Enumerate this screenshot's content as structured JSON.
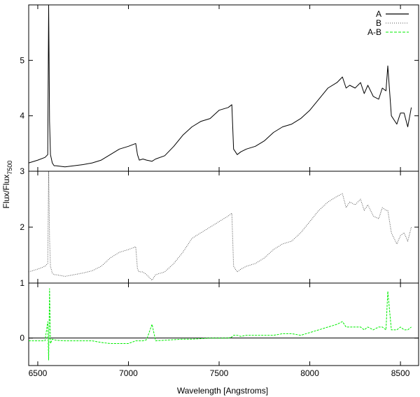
{
  "chart_data": {
    "type": "line",
    "xlabel": "Wavelength [Angstroms]",
    "ylabel": {
      "main": "Flux/Flux",
      "subscript": "7500"
    },
    "xlim": [
      6450,
      8600
    ],
    "x_ticks": [
      6500,
      7000,
      7500,
      8000,
      8500
    ],
    "x_tick_labels": [
      "6500",
      "7000",
      "7500",
      "8000",
      "8500"
    ],
    "grid": false,
    "legend_position": "top-right",
    "colors": {
      "A": "#000000",
      "B": "#555555",
      "A-B": "#00ee00",
      "axis": "#000000"
    },
    "legend": [
      {
        "label": "A",
        "style": "solid"
      },
      {
        "label": "B",
        "style": "dotted"
      },
      {
        "label": "A-B",
        "style": "dashed"
      }
    ],
    "panels": [
      {
        "name": "top",
        "series": "A",
        "ylim": [
          3.0,
          6.0
        ],
        "y_ticks": [
          3,
          4,
          5
        ],
        "y_tick_labels": [
          "3",
          "4",
          "5"
        ],
        "x": [
          6450,
          6500,
          6540,
          6555,
          6560,
          6565,
          6570,
          6580,
          6590,
          6600,
          6650,
          6700,
          6750,
          6800,
          6850,
          6900,
          6950,
          7000,
          7040,
          7050,
          7060,
          7080,
          7100,
          7130,
          7150,
          7200,
          7250,
          7300,
          7350,
          7400,
          7450,
          7500,
          7550,
          7570,
          7580,
          7600,
          7620,
          7650,
          7700,
          7750,
          7800,
          7850,
          7900,
          7950,
          8000,
          8050,
          8100,
          8150,
          8180,
          8200,
          8220,
          8250,
          8280,
          8300,
          8320,
          8350,
          8380,
          8400,
          8420,
          8430,
          8450,
          8480,
          8500,
          8520,
          8540,
          8560
        ],
        "y": [
          3.15,
          3.2,
          3.25,
          3.3,
          6.0,
          3.9,
          3.3,
          3.15,
          3.1,
          3.1,
          3.08,
          3.1,
          3.12,
          3.15,
          3.2,
          3.3,
          3.4,
          3.45,
          3.5,
          3.3,
          3.2,
          3.22,
          3.2,
          3.18,
          3.22,
          3.28,
          3.45,
          3.65,
          3.8,
          3.9,
          3.95,
          4.1,
          4.15,
          4.2,
          3.4,
          3.3,
          3.35,
          3.4,
          3.45,
          3.55,
          3.7,
          3.8,
          3.85,
          3.95,
          4.1,
          4.3,
          4.5,
          4.6,
          4.7,
          4.5,
          4.55,
          4.5,
          4.6,
          4.4,
          4.55,
          4.35,
          4.3,
          4.5,
          4.45,
          4.9,
          4.0,
          3.85,
          4.05,
          4.05,
          3.8,
          4.15
        ]
      },
      {
        "name": "middle",
        "series": "B",
        "ylim": [
          1.0,
          3.0
        ],
        "y_ticks": [
          1,
          2
        ],
        "y_tick_labels": [
          "1",
          "2"
        ],
        "x": [
          6450,
          6500,
          6540,
          6555,
          6560,
          6565,
          6570,
          6580,
          6590,
          6600,
          6650,
          6700,
          6750,
          6800,
          6850,
          6900,
          6950,
          7000,
          7040,
          7050,
          7060,
          7080,
          7100,
          7130,
          7150,
          7200,
          7250,
          7300,
          7350,
          7400,
          7450,
          7500,
          7550,
          7570,
          7580,
          7600,
          7620,
          7650,
          7700,
          7750,
          7800,
          7850,
          7900,
          7950,
          8000,
          8050,
          8100,
          8150,
          8180,
          8200,
          8220,
          8250,
          8280,
          8300,
          8320,
          8350,
          8380,
          8400,
          8420,
          8430,
          8450,
          8480,
          8500,
          8520,
          8540,
          8560
        ],
        "y": [
          1.2,
          1.25,
          1.3,
          1.35,
          3.0,
          1.8,
          1.3,
          1.18,
          1.15,
          1.15,
          1.12,
          1.15,
          1.18,
          1.22,
          1.3,
          1.45,
          1.55,
          1.6,
          1.65,
          1.25,
          1.2,
          1.2,
          1.15,
          1.05,
          1.15,
          1.2,
          1.35,
          1.55,
          1.8,
          1.9,
          2.0,
          2.1,
          2.2,
          2.25,
          1.3,
          1.2,
          1.25,
          1.3,
          1.35,
          1.45,
          1.6,
          1.7,
          1.75,
          1.9,
          2.1,
          2.3,
          2.45,
          2.55,
          2.6,
          2.35,
          2.45,
          2.4,
          2.5,
          2.3,
          2.4,
          2.2,
          2.15,
          2.35,
          2.3,
          2.3,
          1.9,
          1.7,
          1.85,
          1.9,
          1.75,
          2.0
        ]
      },
      {
        "name": "bottom",
        "series": "A-B",
        "ylim": [
          -0.5,
          1.0
        ],
        "y_ticks": [
          0
        ],
        "y_tick_labels": [
          "0"
        ],
        "zero_line": true,
        "x": [
          6450,
          6500,
          6540,
          6555,
          6560,
          6565,
          6570,
          6580,
          6590,
          6600,
          6650,
          6700,
          6750,
          6800,
          6850,
          6900,
          6950,
          7000,
          7040,
          7050,
          7060,
          7080,
          7100,
          7130,
          7150,
          7200,
          7250,
          7300,
          7350,
          7400,
          7450,
          7500,
          7550,
          7570,
          7580,
          7600,
          7620,
          7650,
          7700,
          7750,
          7800,
          7850,
          7900,
          7950,
          8000,
          8050,
          8100,
          8150,
          8180,
          8200,
          8220,
          8250,
          8280,
          8300,
          8320,
          8350,
          8380,
          8400,
          8420,
          8430,
          8450,
          8480,
          8500,
          8520,
          8540,
          8560
        ],
        "y": [
          -0.05,
          -0.05,
          -0.05,
          0.3,
          -0.4,
          0.9,
          -0.1,
          -0.02,
          -0.03,
          -0.04,
          -0.05,
          -0.05,
          -0.05,
          -0.05,
          -0.08,
          -0.1,
          -0.1,
          -0.1,
          -0.05,
          -0.05,
          -0.05,
          -0.05,
          -0.03,
          0.25,
          -0.05,
          -0.04,
          -0.03,
          -0.02,
          -0.02,
          -0.01,
          0.0,
          0.0,
          0.0,
          0.02,
          0.05,
          0.05,
          0.03,
          0.05,
          0.05,
          0.05,
          0.05,
          0.08,
          0.08,
          0.05,
          0.1,
          0.15,
          0.2,
          0.25,
          0.3,
          0.2,
          0.2,
          0.2,
          0.2,
          0.15,
          0.2,
          0.15,
          0.2,
          0.2,
          0.15,
          0.85,
          0.15,
          0.15,
          0.2,
          0.15,
          0.15,
          0.2
        ]
      }
    ]
  }
}
